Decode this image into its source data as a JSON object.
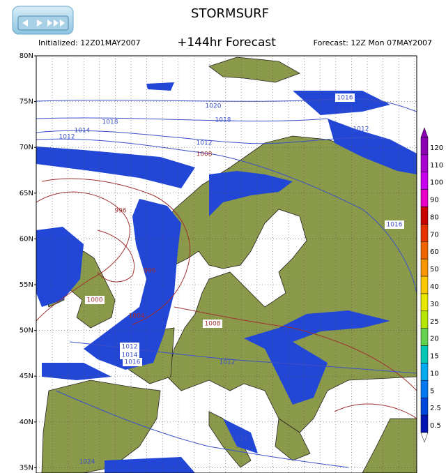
{
  "header": {
    "title": "STORMSURF",
    "initialized": "Initialized: 12Z01MAY2007",
    "forecast_hours": "+144hr Forecast",
    "valid": "Forecast: 12Z Mon 07MAY2007"
  },
  "map": {
    "latitude_labels": [
      "80N",
      "75N",
      "70N",
      "65N",
      "60N",
      "55N",
      "50N",
      "45N",
      "40N",
      "35N"
    ],
    "isobar_labels": [
      "1016",
      "1014",
      "1012",
      "1020",
      "1018",
      "1018",
      "1014",
      "1012",
      "1012",
      "1008",
      "996",
      "996",
      "1000",
      "1004",
      "1008",
      "1016",
      "1012",
      "1014",
      "1016",
      "1012",
      "1014",
      "1024"
    ]
  },
  "colorbar": {
    "labels": [
      "120",
      "110",
      "100",
      "90",
      "80",
      "70",
      "60",
      "50",
      "40",
      "30",
      "25",
      "20",
      "15",
      "10",
      "5",
      "2.5",
      "0.5"
    ],
    "colors": [
      "#8c00b4",
      "#aa00d2",
      "#c800f0",
      "#e600c8",
      "#c80000",
      "#e63200",
      "#f06400",
      "#f59600",
      "#fac800",
      "#e6e600",
      "#b4e600",
      "#64d250",
      "#00c8b4",
      "#00aaf0",
      "#0078f0",
      "#0046dc",
      "#0014b4"
    ]
  }
}
